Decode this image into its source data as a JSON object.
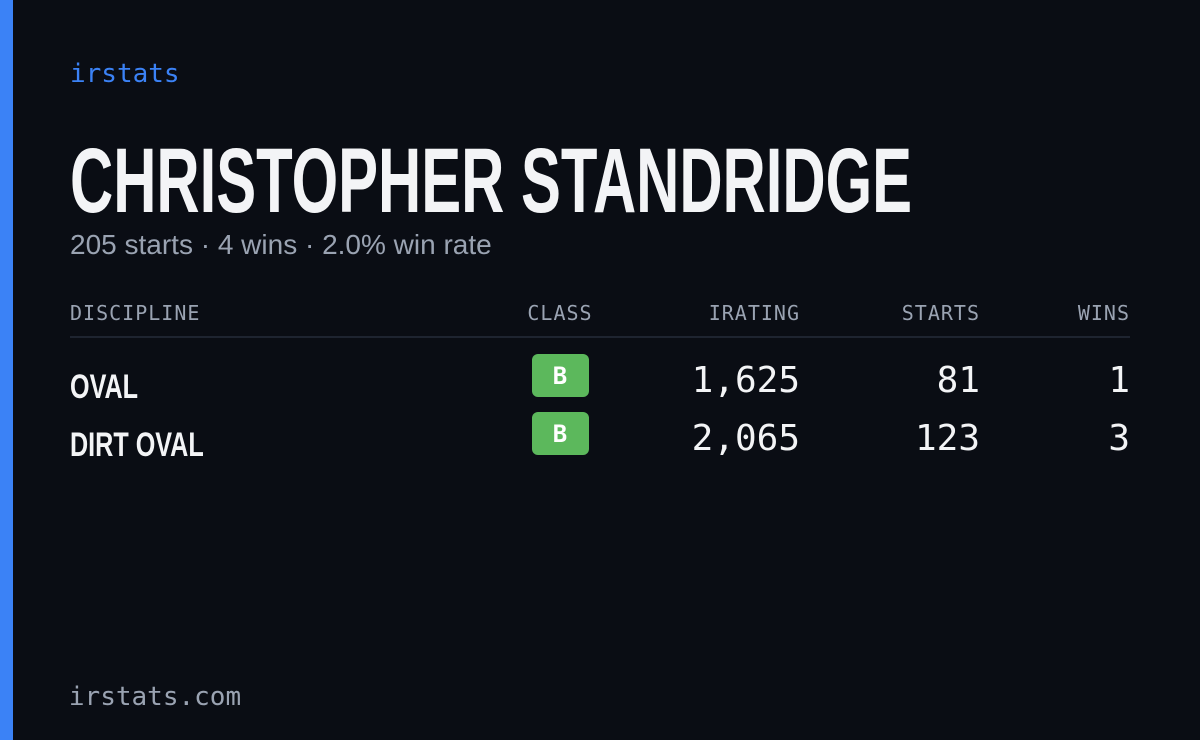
{
  "brand": "irstats",
  "title": "CHRISTOPHER STANDRIDGE",
  "subtitle": "205 starts · 4 wins · 2.0% win rate",
  "table": {
    "columns": [
      "DISCIPLINE",
      "CLASS",
      "IRATING",
      "STARTS",
      "WINS"
    ],
    "rows": [
      [
        "OVAL",
        "B",
        "1,625",
        "81",
        "1"
      ],
      [
        "DIRT OVAL",
        "B",
        "2,065",
        "123",
        "3"
      ]
    ]
  },
  "footer": "irstats.com"
}
